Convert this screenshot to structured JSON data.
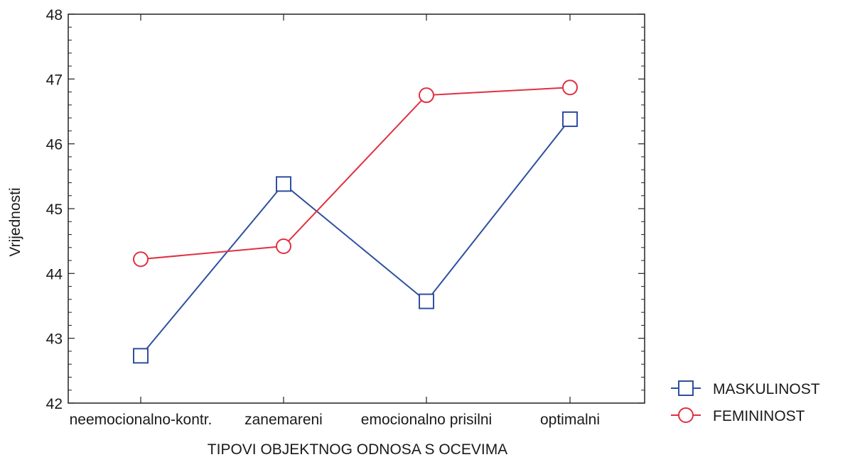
{
  "chart_data": {
    "type": "line",
    "title": "",
    "xlabel": "TIPOVI OBJEKTNOG ODNOSA S OCEVIMA",
    "ylabel": "Vrijednosti",
    "categories": [
      "neemocionalno-kontr.",
      "zanemareni",
      "emocionalno prisilni",
      "optimalni"
    ],
    "ylim": [
      42,
      48
    ],
    "yticks": [
      42,
      43,
      44,
      45,
      46,
      47,
      48
    ],
    "grid": false,
    "legend_position": "bottom-right",
    "series": [
      {
        "name": "MASKULINOST",
        "marker": "square",
        "color": "#2f4fa0",
        "values": [
          42.73,
          45.38,
          43.57,
          46.38
        ]
      },
      {
        "name": "FEMININOST",
        "marker": "circle",
        "color": "#e0303f",
        "values": [
          44.22,
          44.42,
          46.75,
          46.87
        ]
      }
    ]
  }
}
